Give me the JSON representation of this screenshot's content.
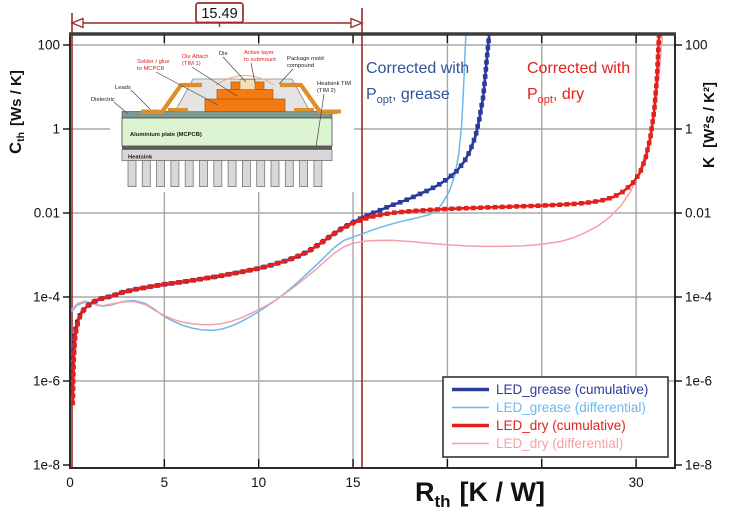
{
  "annotations": {
    "dimension": {
      "value": "15.49",
      "color": "#9B2B28",
      "x_position": 15.49
    },
    "grease": {
      "line1": "Corrected with",
      "p_main": "P",
      "p_sub": "opt",
      "p_rest": ", grease",
      "color": "#2F5496"
    },
    "dry": {
      "line1": "Corrected with",
      "p_main": "P",
      "p_sub": "opt",
      "p_rest": ", dry",
      "color": "#E3201B"
    }
  },
  "axes": {
    "x": {
      "main": "R",
      "sub": "th",
      "units": "[K / W]",
      "ticks": [
        {
          "v": 0,
          "label": "0"
        },
        {
          "v": 5,
          "label": "5"
        },
        {
          "v": 10,
          "label": "10"
        },
        {
          "v": 15,
          "label": "15"
        },
        {
          "v": 20,
          "label": ""
        },
        {
          "v": 25,
          "label": ""
        },
        {
          "v": 30,
          "label": "30"
        }
      ]
    },
    "y_left": {
      "main": "C",
      "sub": "th",
      "units": "[Ws / K]",
      "ticks": [
        {
          "v": 100,
          "label": "100"
        },
        {
          "v": 1,
          "label": "1"
        },
        {
          "v": 0.01,
          "label": "0.01"
        },
        {
          "v": 0.0001,
          "label": "1e-4"
        },
        {
          "v": 1e-06,
          "label": "1e-6"
        },
        {
          "v": 1e-08,
          "label": "1e-8"
        }
      ]
    },
    "y_right": {
      "main": "K",
      "units": "[W²s / K²]",
      "ticks": [
        {
          "v": 100,
          "label": "100"
        },
        {
          "v": 1,
          "label": "1"
        },
        {
          "v": 0.01,
          "label": "0.01"
        },
        {
          "v": 0.0001,
          "label": "1e-4"
        },
        {
          "v": 1e-06,
          "label": "1e-6"
        },
        {
          "v": 1e-08,
          "label": "1e-8"
        }
      ]
    }
  },
  "legend": {
    "items": [
      {
        "label": "LED_grease (cumulative)",
        "color": "#2B3A9B",
        "lw": 3.5
      },
      {
        "label": "LED_grease (differential)",
        "color": "#6FB7E8",
        "lw": 1.6
      },
      {
        "label": "LED_dry (cumulative)",
        "color": "#E3201B",
        "lw": 3.5
      },
      {
        "label": "LED_dry (differential)",
        "color": "#F5A0A8",
        "lw": 1.6
      }
    ]
  },
  "inset": {
    "labels": {
      "solder": {
        "line1": "Solder / glue",
        "line2": "to MCPCB"
      },
      "die_attach": {
        "line1": "Die Attach",
        "line2": "(TIM 1)"
      },
      "die": {
        "label": "Die"
      },
      "active": {
        "line1": "Active layer",
        "line2": "to submount"
      },
      "mold": {
        "line1": "Package mold",
        "line2": "compound"
      },
      "leads": {
        "label": "Leads"
      },
      "dielectric": {
        "label": "Dielectric"
      },
      "tim2": {
        "line1": "Heatsink TIM",
        "line2": "(TIM 2)"
      },
      "plate": {
        "label": "Aluminium plate (MCPCB)"
      },
      "heatsink": {
        "label": "Heatsink"
      }
    }
  },
  "colors": {
    "dark_red_marker": "#9B2B28",
    "grid": "#A8A8A8",
    "frame": "#2b2b2b"
  },
  "chart_data": {
    "type": "line",
    "title": "Cumulative and differential structure functions",
    "xlabel": "Rth [K / W]",
    "ylabel_left": "Cth [Ws / K]",
    "ylabel_right": "K [W²s / K²]",
    "x_scale": "linear",
    "y_scale": "log",
    "xlim": [
      0,
      32.1
    ],
    "ylim": [
      1e-08,
      200
    ],
    "x_gridlines": [
      5,
      10,
      15,
      20,
      25,
      30
    ],
    "y_gridlines": [
      100,
      1,
      0.01,
      0.0001,
      1e-06
    ],
    "marked_resistance": 15.49,
    "legend_position": "bottom-right",
    "series": [
      {
        "name": "LED_grease (differential)",
        "style": "differential",
        "color": "#6FB7E8",
        "points": [
          [
            0.08,
            4.5e-05
          ],
          [
            0.4,
            6.5e-05
          ],
          [
            0.8,
            7.5e-05
          ],
          [
            1.2,
            6.8e-05
          ],
          [
            1.7,
            6e-05
          ],
          [
            2.2,
            6.5e-05
          ],
          [
            2.8,
            7.8e-05
          ],
          [
            3.4,
            8.2e-05
          ],
          [
            4,
            7e-05
          ],
          [
            4.5,
            5e-05
          ],
          [
            5,
            3.4e-05
          ],
          [
            5.5,
            2.6e-05
          ],
          [
            6,
            2.1e-05
          ],
          [
            6.5,
            1.8e-05
          ],
          [
            7,
            1.65e-05
          ],
          [
            7.5,
            1.6e-05
          ],
          [
            8,
            1.7e-05
          ],
          [
            8.5,
            2e-05
          ],
          [
            9,
            2.5e-05
          ],
          [
            9.5,
            3.3e-05
          ],
          [
            10,
            4.5e-05
          ],
          [
            10.5,
            6.3e-05
          ],
          [
            11,
            9e-05
          ],
          [
            11.5,
            0.000135
          ],
          [
            12,
            0.00021
          ],
          [
            12.5,
            0.00034
          ],
          [
            13,
            0.00055
          ],
          [
            13.5,
            0.0009
          ],
          [
            14,
            0.0015
          ],
          [
            14.5,
            0.0022
          ],
          [
            15,
            0.0027
          ],
          [
            15.49,
            0.0032
          ],
          [
            16,
            0.0039
          ],
          [
            16.5,
            0.0046
          ],
          [
            17,
            0.0054
          ],
          [
            17.5,
            0.0062
          ],
          [
            18,
            0.007
          ],
          [
            18.5,
            0.0079
          ],
          [
            19,
            0.009
          ],
          [
            19.5,
            0.012
          ],
          [
            19.8,
            0.019
          ],
          [
            20.1,
            0.033
          ],
          [
            20.4,
            0.08
          ],
          [
            20.6,
            0.25
          ],
          [
            20.75,
            1.2
          ],
          [
            20.85,
            8
          ],
          [
            20.95,
            90
          ],
          [
            21.02,
            400
          ]
        ]
      },
      {
        "name": "LED_dry (differential)",
        "style": "differential",
        "color": "#F5A0A8",
        "points": [
          [
            0.08,
            5e-05
          ],
          [
            0.4,
            7e-05
          ],
          [
            0.8,
            8e-05
          ],
          [
            1.2,
            7e-05
          ],
          [
            1.7,
            6.2e-05
          ],
          [
            2.2,
            6.8e-05
          ],
          [
            2.8,
            7.6e-05
          ],
          [
            3.4,
            7.8e-05
          ],
          [
            4,
            6.6e-05
          ],
          [
            4.5,
            4.8e-05
          ],
          [
            5,
            3.6e-05
          ],
          [
            5.5,
            2.9e-05
          ],
          [
            6,
            2.5e-05
          ],
          [
            6.5,
            2.3e-05
          ],
          [
            7,
            2.2e-05
          ],
          [
            7.5,
            2.2e-05
          ],
          [
            8,
            2.3e-05
          ],
          [
            8.5,
            2.6e-05
          ],
          [
            9,
            3.1e-05
          ],
          [
            9.5,
            3.9e-05
          ],
          [
            10,
            5e-05
          ],
          [
            10.5,
            6.6e-05
          ],
          [
            11,
            9e-05
          ],
          [
            11.5,
            0.00013
          ],
          [
            12,
            0.00019
          ],
          [
            12.5,
            0.00029
          ],
          [
            13,
            0.00044
          ],
          [
            13.5,
            0.0007
          ],
          [
            14,
            0.0011
          ],
          [
            14.5,
            0.00155
          ],
          [
            15,
            0.0019
          ],
          [
            15.49,
            0.0021
          ],
          [
            16,
            0.0022
          ],
          [
            17,
            0.00225
          ],
          [
            18,
            0.0021
          ],
          [
            19,
            0.0019
          ],
          [
            20,
            0.00175
          ],
          [
            21,
            0.00165
          ],
          [
            22,
            0.0016
          ],
          [
            23,
            0.0016
          ],
          [
            24,
            0.00165
          ],
          [
            25,
            0.0018
          ],
          [
            26,
            0.0021
          ],
          [
            26.7,
            0.0026
          ],
          [
            27.3,
            0.0034
          ],
          [
            28,
            0.005
          ],
          [
            28.6,
            0.008
          ],
          [
            29.2,
            0.015
          ],
          [
            29.7,
            0.032
          ],
          [
            30.1,
            0.08
          ],
          [
            30.5,
            0.25
          ],
          [
            30.8,
            0.9
          ],
          [
            31.05,
            4
          ],
          [
            31.25,
            30
          ],
          [
            31.4,
            200
          ],
          [
            31.45,
            400
          ]
        ]
      },
      {
        "name": "LED_grease (cumulative)",
        "style": "cumulative",
        "color": "#2B3A9B",
        "points": [
          [
            0.1,
            5e-07
          ],
          [
            0.13,
            1.5e-06
          ],
          [
            0.18,
            5e-06
          ],
          [
            0.25,
            1.4e-05
          ],
          [
            0.4,
            2.8e-05
          ],
          [
            0.6,
            4.3e-05
          ],
          [
            0.9,
            6e-05
          ],
          [
            1.2,
            7.5e-05
          ],
          [
            1.6,
            9e-05
          ],
          [
            2.2,
            0.000105
          ],
          [
            2.8,
            0.00013
          ],
          [
            3.4,
            0.00015
          ],
          [
            4.2,
            0.000175
          ],
          [
            5,
            0.0002
          ],
          [
            6,
            0.00023
          ],
          [
            7,
            0.00027
          ],
          [
            8,
            0.00032
          ],
          [
            9,
            0.00039
          ],
          [
            10,
            0.00048
          ],
          [
            10.7,
            0.00058
          ],
          [
            11.4,
            0.00072
          ],
          [
            12,
            0.0009
          ],
          [
            12.6,
            0.0012
          ],
          [
            13.2,
            0.0018
          ],
          [
            13.8,
            0.0028
          ],
          [
            14.4,
            0.0043
          ],
          [
            15,
            0.006
          ],
          [
            15.49,
            0.0078
          ],
          [
            16,
            0.0098
          ],
          [
            16.5,
            0.012
          ],
          [
            17,
            0.015
          ],
          [
            17.5,
            0.018
          ],
          [
            18,
            0.022
          ],
          [
            18.5,
            0.028
          ],
          [
            19,
            0.035
          ],
          [
            19.5,
            0.046
          ],
          [
            20,
            0.065
          ],
          [
            20.5,
            0.1
          ],
          [
            20.9,
            0.17
          ],
          [
            21.2,
            0.3
          ],
          [
            21.5,
            0.7
          ],
          [
            21.7,
            1.8
          ],
          [
            21.9,
            6
          ],
          [
            22.05,
            30
          ],
          [
            22.2,
            150
          ],
          [
            22.3,
            400
          ]
        ]
      },
      {
        "name": "LED_dry (cumulative)",
        "style": "cumulative",
        "color": "#E3201B",
        "points": [
          [
            0.15,
            3e-07
          ],
          [
            0.17,
            1e-06
          ],
          [
            0.21,
            4e-06
          ],
          [
            0.28,
            1.2e-05
          ],
          [
            0.45,
            2.8e-05
          ],
          [
            0.65,
            4.5e-05
          ],
          [
            0.9,
            6e-05
          ],
          [
            1.2,
            7.5e-05
          ],
          [
            1.6,
            9e-05
          ],
          [
            2.2,
            0.000105
          ],
          [
            2.8,
            0.00013
          ],
          [
            3.4,
            0.00015
          ],
          [
            4.2,
            0.000175
          ],
          [
            5,
            0.0002
          ],
          [
            6,
            0.00023
          ],
          [
            7,
            0.00027
          ],
          [
            8,
            0.00032
          ],
          [
            9,
            0.00039
          ],
          [
            10,
            0.00048
          ],
          [
            10.7,
            0.00058
          ],
          [
            11.4,
            0.00072
          ],
          [
            12,
            0.0009
          ],
          [
            12.6,
            0.0012
          ],
          [
            13.2,
            0.0018
          ],
          [
            13.8,
            0.0028
          ],
          [
            14.4,
            0.0042
          ],
          [
            15,
            0.0058
          ],
          [
            15.49,
            0.007
          ],
          [
            16,
            0.0082
          ],
          [
            16.6,
            0.0093
          ],
          [
            17.2,
            0.0102
          ],
          [
            18,
            0.011
          ],
          [
            19,
            0.0118
          ],
          [
            20,
            0.0125
          ],
          [
            21,
            0.013
          ],
          [
            22,
            0.0135
          ],
          [
            23,
            0.014
          ],
          [
            24,
            0.0145
          ],
          [
            25,
            0.015
          ],
          [
            26,
            0.0158
          ],
          [
            27,
            0.0168
          ],
          [
            27.6,
            0.018
          ],
          [
            28.2,
            0.02
          ],
          [
            28.8,
            0.024
          ],
          [
            29.3,
            0.032
          ],
          [
            29.8,
            0.05
          ],
          [
            30.2,
            0.09
          ],
          [
            30.5,
            0.2
          ],
          [
            30.75,
            0.6
          ],
          [
            30.95,
            2.5
          ],
          [
            31.1,
            15
          ],
          [
            31.2,
            120
          ],
          [
            31.25,
            400
          ]
        ]
      }
    ]
  }
}
